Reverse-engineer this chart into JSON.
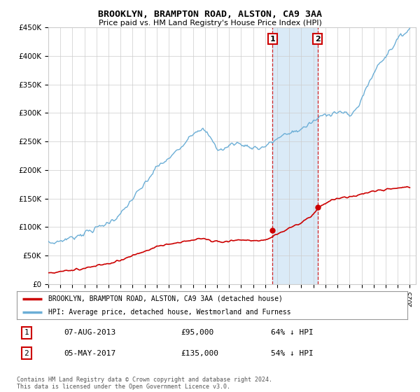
{
  "title": "BROOKLYN, BRAMPTON ROAD, ALSTON, CA9 3AA",
  "subtitle": "Price paid vs. HM Land Registry's House Price Index (HPI)",
  "ylim": [
    0,
    450000
  ],
  "yticks": [
    0,
    50000,
    100000,
    150000,
    200000,
    250000,
    300000,
    350000,
    400000,
    450000
  ],
  "ytick_labels": [
    "£0",
    "£50K",
    "£100K",
    "£150K",
    "£200K",
    "£250K",
    "£300K",
    "£350K",
    "£400K",
    "£450K"
  ],
  "hpi_color": "#6baed6",
  "price_color": "#cc0000",
  "sale1_price": 95000,
  "sale1_date": "07-AUG-2013",
  "sale1_pct": "64%",
  "sale2_price": 135000,
  "sale2_date": "05-MAY-2017",
  "sale2_pct": "54%",
  "legend_price_label": "BROOKLYN, BRAMPTON ROAD, ALSTON, CA9 3AA (detached house)",
  "legend_hpi_label": "HPI: Average price, detached house, Westmorland and Furness",
  "footnote": "Contains HM Land Registry data © Crown copyright and database right 2024.\nThis data is licensed under the Open Government Licence v3.0.",
  "background_color": "#ffffff",
  "grid_color": "#cccccc",
  "shade_color": "#daeaf7",
  "vline_color": "#cc0000",
  "hpi_keypoints": [
    [
      1995.0,
      72000
    ],
    [
      1995.5,
      73000
    ],
    [
      1996.0,
      76000
    ],
    [
      1997.0,
      82000
    ],
    [
      1998.0,
      90000
    ],
    [
      1999.0,
      98000
    ],
    [
      2000.0,
      108000
    ],
    [
      2001.0,
      122000
    ],
    [
      2002.0,
      150000
    ],
    [
      2003.0,
      175000
    ],
    [
      2004.0,
      205000
    ],
    [
      2005.0,
      220000
    ],
    [
      2006.0,
      240000
    ],
    [
      2006.5,
      255000
    ],
    [
      2007.0,
      265000
    ],
    [
      2007.5,
      272000
    ],
    [
      2008.0,
      268000
    ],
    [
      2008.5,
      255000
    ],
    [
      2009.0,
      238000
    ],
    [
      2009.5,
      235000
    ],
    [
      2010.0,
      243000
    ],
    [
      2010.5,
      248000
    ],
    [
      2011.0,
      245000
    ],
    [
      2011.5,
      242000
    ],
    [
      2012.0,
      240000
    ],
    [
      2012.5,
      238000
    ],
    [
      2013.0,
      242000
    ],
    [
      2013.5,
      248000
    ],
    [
      2014.0,
      255000
    ],
    [
      2014.5,
      260000
    ],
    [
      2015.0,
      265000
    ],
    [
      2015.5,
      268000
    ],
    [
      2016.0,
      272000
    ],
    [
      2016.5,
      278000
    ],
    [
      2017.0,
      285000
    ],
    [
      2017.5,
      292000
    ],
    [
      2018.0,
      298000
    ],
    [
      2018.5,
      300000
    ],
    [
      2019.0,
      302000
    ],
    [
      2019.5,
      300000
    ],
    [
      2020.0,
      295000
    ],
    [
      2020.5,
      305000
    ],
    [
      2021.0,
      325000
    ],
    [
      2021.5,
      348000
    ],
    [
      2022.0,
      370000
    ],
    [
      2022.5,
      388000
    ],
    [
      2023.0,
      400000
    ],
    [
      2023.5,
      415000
    ],
    [
      2024.0,
      428000
    ],
    [
      2024.5,
      440000
    ],
    [
      2025.0,
      448000
    ]
  ],
  "price_keypoints": [
    [
      1995.0,
      20000
    ],
    [
      1996.0,
      22000
    ],
    [
      1997.0,
      25000
    ],
    [
      1998.0,
      28000
    ],
    [
      1999.0,
      32000
    ],
    [
      2000.0,
      36000
    ],
    [
      2001.0,
      42000
    ],
    [
      2002.0,
      50000
    ],
    [
      2003.0,
      58000
    ],
    [
      2004.0,
      65000
    ],
    [
      2005.0,
      70000
    ],
    [
      2006.0,
      74000
    ],
    [
      2007.0,
      78000
    ],
    [
      2007.5,
      80000
    ],
    [
      2008.0,
      79000
    ],
    [
      2008.5,
      77000
    ],
    [
      2009.0,
      75000
    ],
    [
      2009.5,
      74000
    ],
    [
      2010.0,
      76000
    ],
    [
      2010.5,
      77000
    ],
    [
      2011.0,
      77500
    ],
    [
      2011.5,
      77000
    ],
    [
      2012.0,
      76500
    ],
    [
      2012.5,
      76000
    ],
    [
      2013.0,
      77000
    ],
    [
      2013.5,
      82000
    ],
    [
      2014.0,
      88000
    ],
    [
      2014.5,
      93000
    ],
    [
      2015.0,
      98000
    ],
    [
      2015.5,
      103000
    ],
    [
      2016.0,
      108000
    ],
    [
      2016.5,
      115000
    ],
    [
      2017.0,
      122000
    ],
    [
      2017.5,
      135000
    ],
    [
      2018.0,
      142000
    ],
    [
      2018.5,
      147000
    ],
    [
      2019.0,
      150000
    ],
    [
      2019.5,
      152000
    ],
    [
      2020.0,
      153000
    ],
    [
      2020.5,
      155000
    ],
    [
      2021.0,
      158000
    ],
    [
      2021.5,
      161000
    ],
    [
      2022.0,
      163000
    ],
    [
      2022.5,
      165000
    ],
    [
      2023.0,
      166000
    ],
    [
      2023.5,
      167500
    ],
    [
      2024.0,
      168500
    ],
    [
      2024.5,
      169500
    ],
    [
      2025.0,
      170000
    ]
  ]
}
